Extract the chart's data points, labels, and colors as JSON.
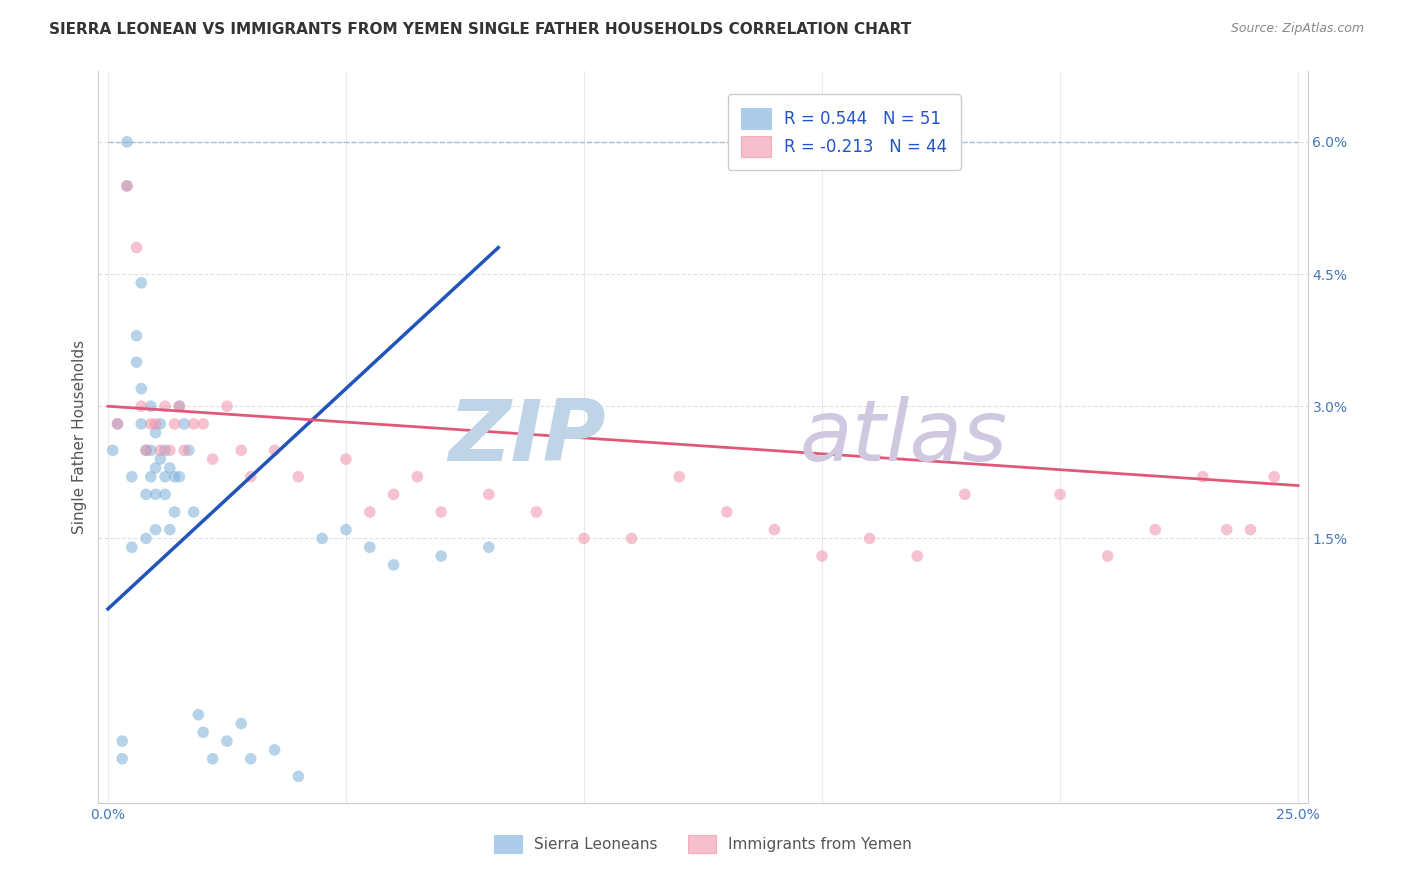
{
  "title": "SIERRA LEONEAN VS IMMIGRANTS FROM YEMEN SINGLE FATHER HOUSEHOLDS CORRELATION CHART",
  "source": "Source: ZipAtlas.com",
  "ylabel": "Single Father Households",
  "y_ticks": [
    0.0,
    0.015,
    0.03,
    0.045,
    0.06
  ],
  "y_tick_labels": [
    "",
    "1.5%",
    "3.0%",
    "4.5%",
    "6.0%"
  ],
  "x_ticks": [
    0.0,
    0.05,
    0.1,
    0.15,
    0.2,
    0.25
  ],
  "x_tick_labels": [
    "0.0%",
    "",
    "",
    "",
    "",
    "25.0%"
  ],
  "xlim": [
    -0.002,
    0.252
  ],
  "ylim": [
    -0.015,
    0.068
  ],
  "legend_entries": [
    {
      "label": "R = 0.544   N = 51",
      "color": "#aecce8"
    },
    {
      "label": "R = -0.213   N = 44",
      "color": "#f5bfce"
    }
  ],
  "legend_bottom": [
    {
      "label": "Sierra Leoneans",
      "color": "#aecce8"
    },
    {
      "label": "Immigrants from Yemen",
      "color": "#f5bfce"
    }
  ],
  "blue_scatter_x": [
    0.001,
    0.002,
    0.003,
    0.003,
    0.004,
    0.004,
    0.005,
    0.005,
    0.006,
    0.006,
    0.007,
    0.007,
    0.007,
    0.008,
    0.008,
    0.008,
    0.009,
    0.009,
    0.009,
    0.01,
    0.01,
    0.01,
    0.01,
    0.011,
    0.011,
    0.012,
    0.012,
    0.012,
    0.013,
    0.013,
    0.014,
    0.014,
    0.015,
    0.015,
    0.016,
    0.017,
    0.018,
    0.019,
    0.02,
    0.022,
    0.025,
    0.028,
    0.03,
    0.035,
    0.04,
    0.045,
    0.05,
    0.055,
    0.06,
    0.07,
    0.08
  ],
  "blue_scatter_y": [
    0.025,
    0.028,
    -0.008,
    -0.01,
    0.055,
    0.06,
    0.022,
    0.014,
    0.035,
    0.038,
    0.028,
    0.032,
    0.044,
    0.025,
    0.02,
    0.015,
    0.03,
    0.025,
    0.022,
    0.027,
    0.023,
    0.02,
    0.016,
    0.024,
    0.028,
    0.025,
    0.022,
    0.02,
    0.023,
    0.016,
    0.022,
    0.018,
    0.03,
    0.022,
    0.028,
    0.025,
    0.018,
    -0.005,
    -0.007,
    -0.01,
    -0.008,
    -0.006,
    -0.01,
    -0.009,
    -0.012,
    0.015,
    0.016,
    0.014,
    0.012,
    0.013,
    0.014
  ],
  "pink_scatter_x": [
    0.002,
    0.004,
    0.006,
    0.007,
    0.008,
    0.009,
    0.01,
    0.011,
    0.012,
    0.013,
    0.014,
    0.015,
    0.016,
    0.018,
    0.02,
    0.022,
    0.025,
    0.028,
    0.03,
    0.035,
    0.04,
    0.05,
    0.055,
    0.06,
    0.065,
    0.07,
    0.08,
    0.09,
    0.1,
    0.11,
    0.12,
    0.13,
    0.14,
    0.15,
    0.16,
    0.17,
    0.18,
    0.2,
    0.21,
    0.22,
    0.23,
    0.235,
    0.24,
    0.245
  ],
  "pink_scatter_y": [
    0.028,
    0.055,
    0.048,
    0.03,
    0.025,
    0.028,
    0.028,
    0.025,
    0.03,
    0.025,
    0.028,
    0.03,
    0.025,
    0.028,
    0.028,
    0.024,
    0.03,
    0.025,
    0.022,
    0.025,
    0.022,
    0.024,
    0.018,
    0.02,
    0.022,
    0.018,
    0.02,
    0.018,
    0.015,
    0.015,
    0.022,
    0.018,
    0.016,
    0.013,
    0.015,
    0.013,
    0.02,
    0.02,
    0.013,
    0.016,
    0.022,
    0.016,
    0.016,
    0.022
  ],
  "blue_line_x": [
    0.0,
    0.082
  ],
  "blue_line_y": [
    0.007,
    0.048
  ],
  "pink_line_x": [
    0.0,
    0.25
  ],
  "pink_line_y": [
    0.03,
    0.021
  ],
  "dashed_line_x": [
    0.0,
    0.25
  ],
  "dashed_line_y": [
    0.06,
    0.06
  ],
  "background_color": "#ffffff",
  "plot_bg_color": "#ffffff",
  "grid_color": "#dddddd",
  "blue_color": "#7ab0d8",
  "pink_color": "#f090a8",
  "blue_line_color": "#2255bb",
  "pink_line_color": "#e05878",
  "dashed_color": "#9ab0cc",
  "title_color": "#333333",
  "source_color": "#888888",
  "watermark_zip": "ZIP",
  "watermark_atlas": "atlas",
  "watermark_color_zip": "#c0d4e8",
  "watermark_color_atlas": "#d0c8e0",
  "marker_size": 70,
  "alpha_scatter": 0.55
}
